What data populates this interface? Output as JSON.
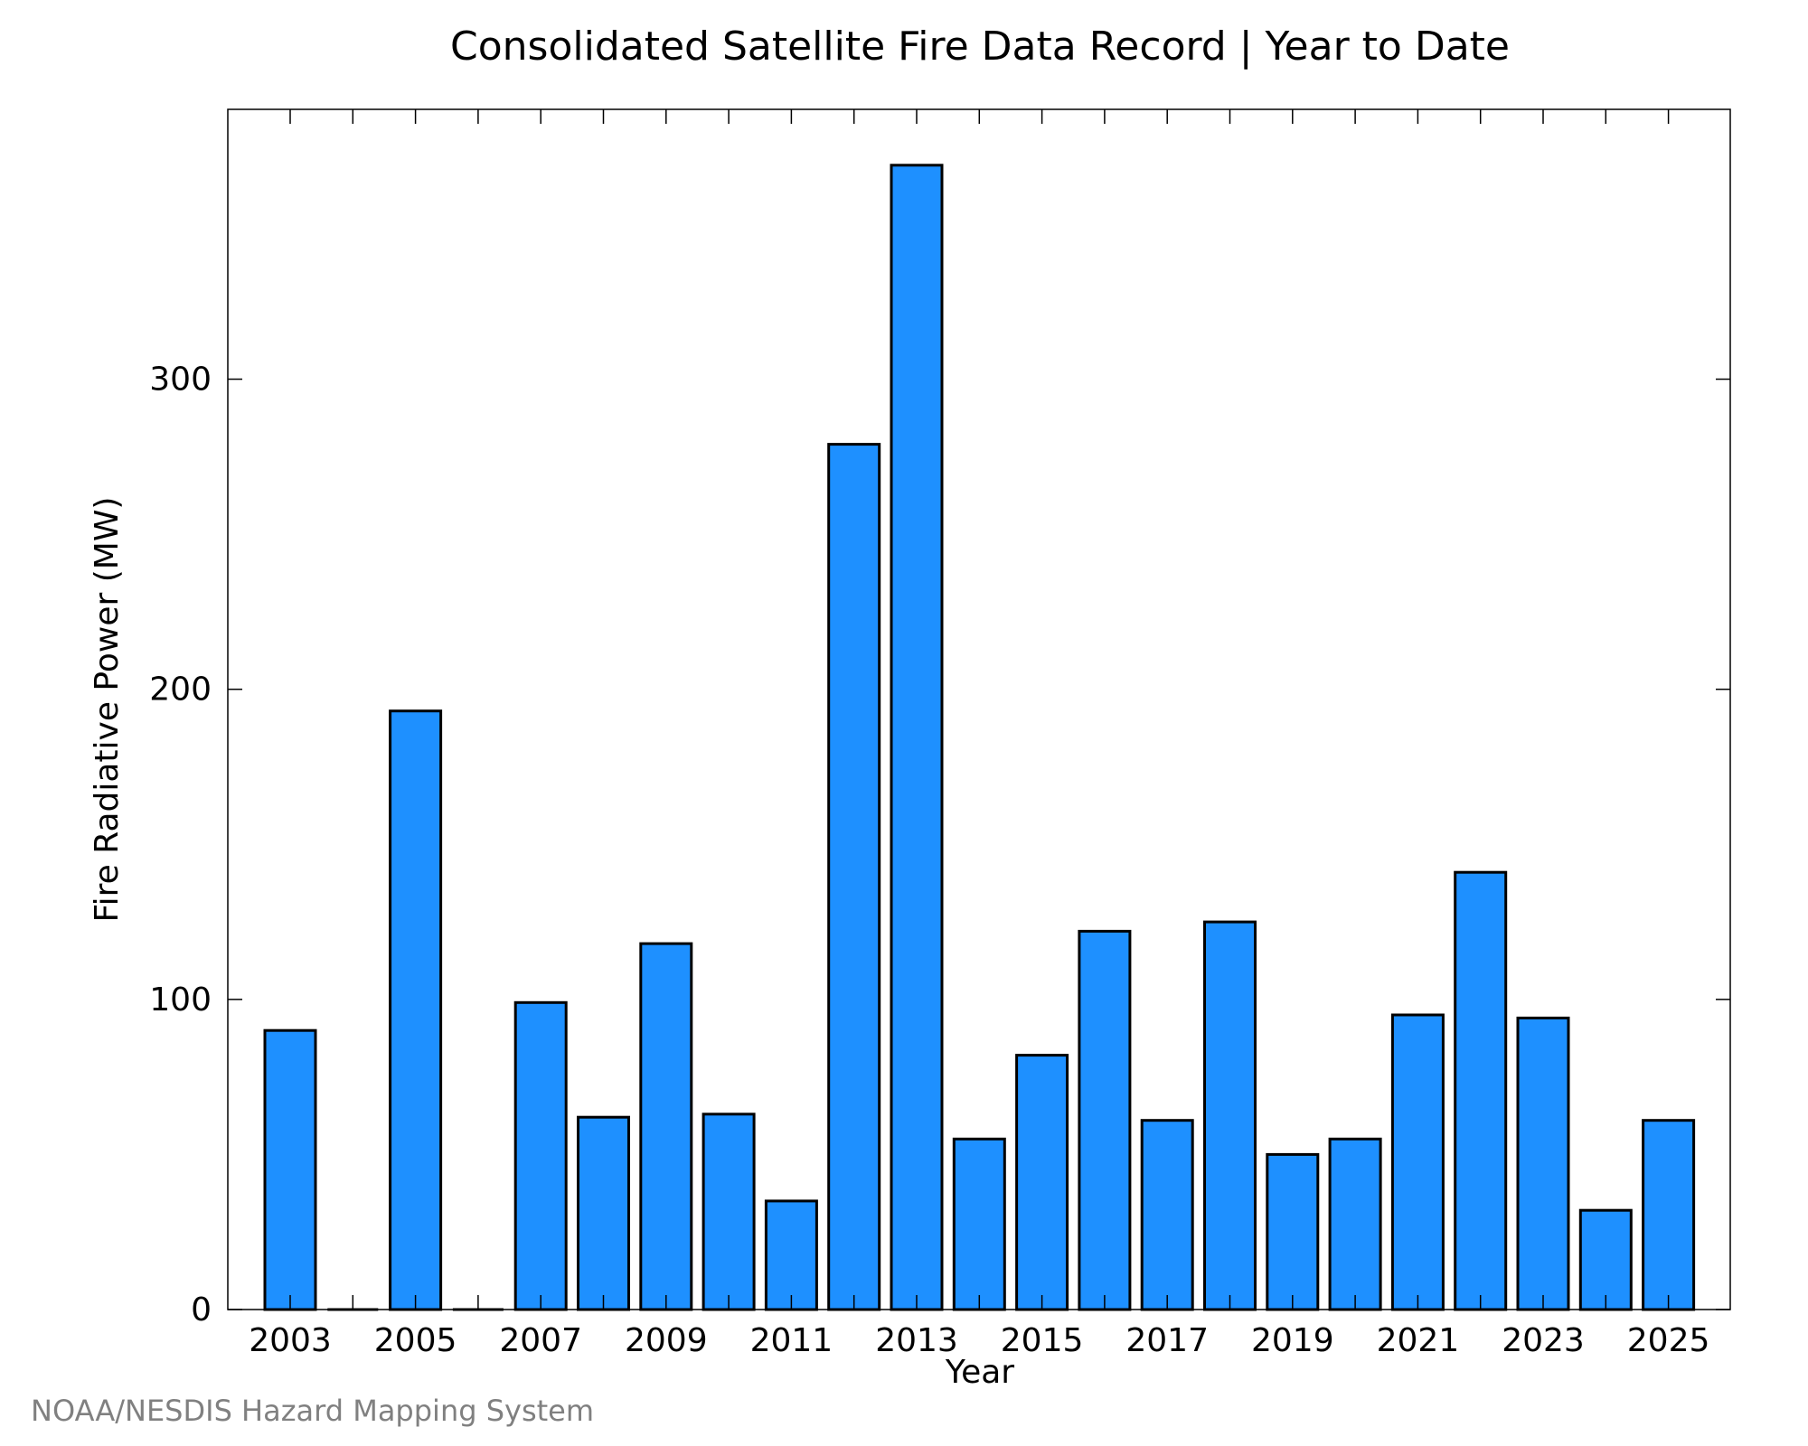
{
  "chart_data": {
    "type": "bar",
    "title": "Consolidated Satellite Fire Data Record | Year to Date",
    "xlabel": "Year",
    "ylabel": "Fire Radiative Power (MW)",
    "categories": [
      "2003",
      "2004",
      "2005",
      "2006",
      "2007",
      "2008",
      "2009",
      "2010",
      "2011",
      "2012",
      "2013",
      "2014",
      "2015",
      "2016",
      "2017",
      "2018",
      "2019",
      "2020",
      "2021",
      "2022",
      "2023",
      "2024",
      "2025"
    ],
    "x_tick_labels": [
      "2003",
      "2005",
      "2007",
      "2009",
      "2011",
      "2013",
      "2015",
      "2017",
      "2019",
      "2021",
      "2023",
      "2025"
    ],
    "values": [
      90,
      0,
      193,
      0,
      99,
      62,
      118,
      63,
      35,
      279,
      369,
      55,
      82,
      122,
      61,
      125,
      50,
      55,
      95,
      141,
      94,
      32,
      61
    ],
    "ylim": [
      0,
      387
    ],
    "y_ticks": [
      0,
      100,
      200,
      300
    ],
    "grid": false,
    "bar_color": "#1e90ff",
    "bar_edge_color": "#000000"
  },
  "credit": "NOAA/NESDIS Hazard Mapping System"
}
